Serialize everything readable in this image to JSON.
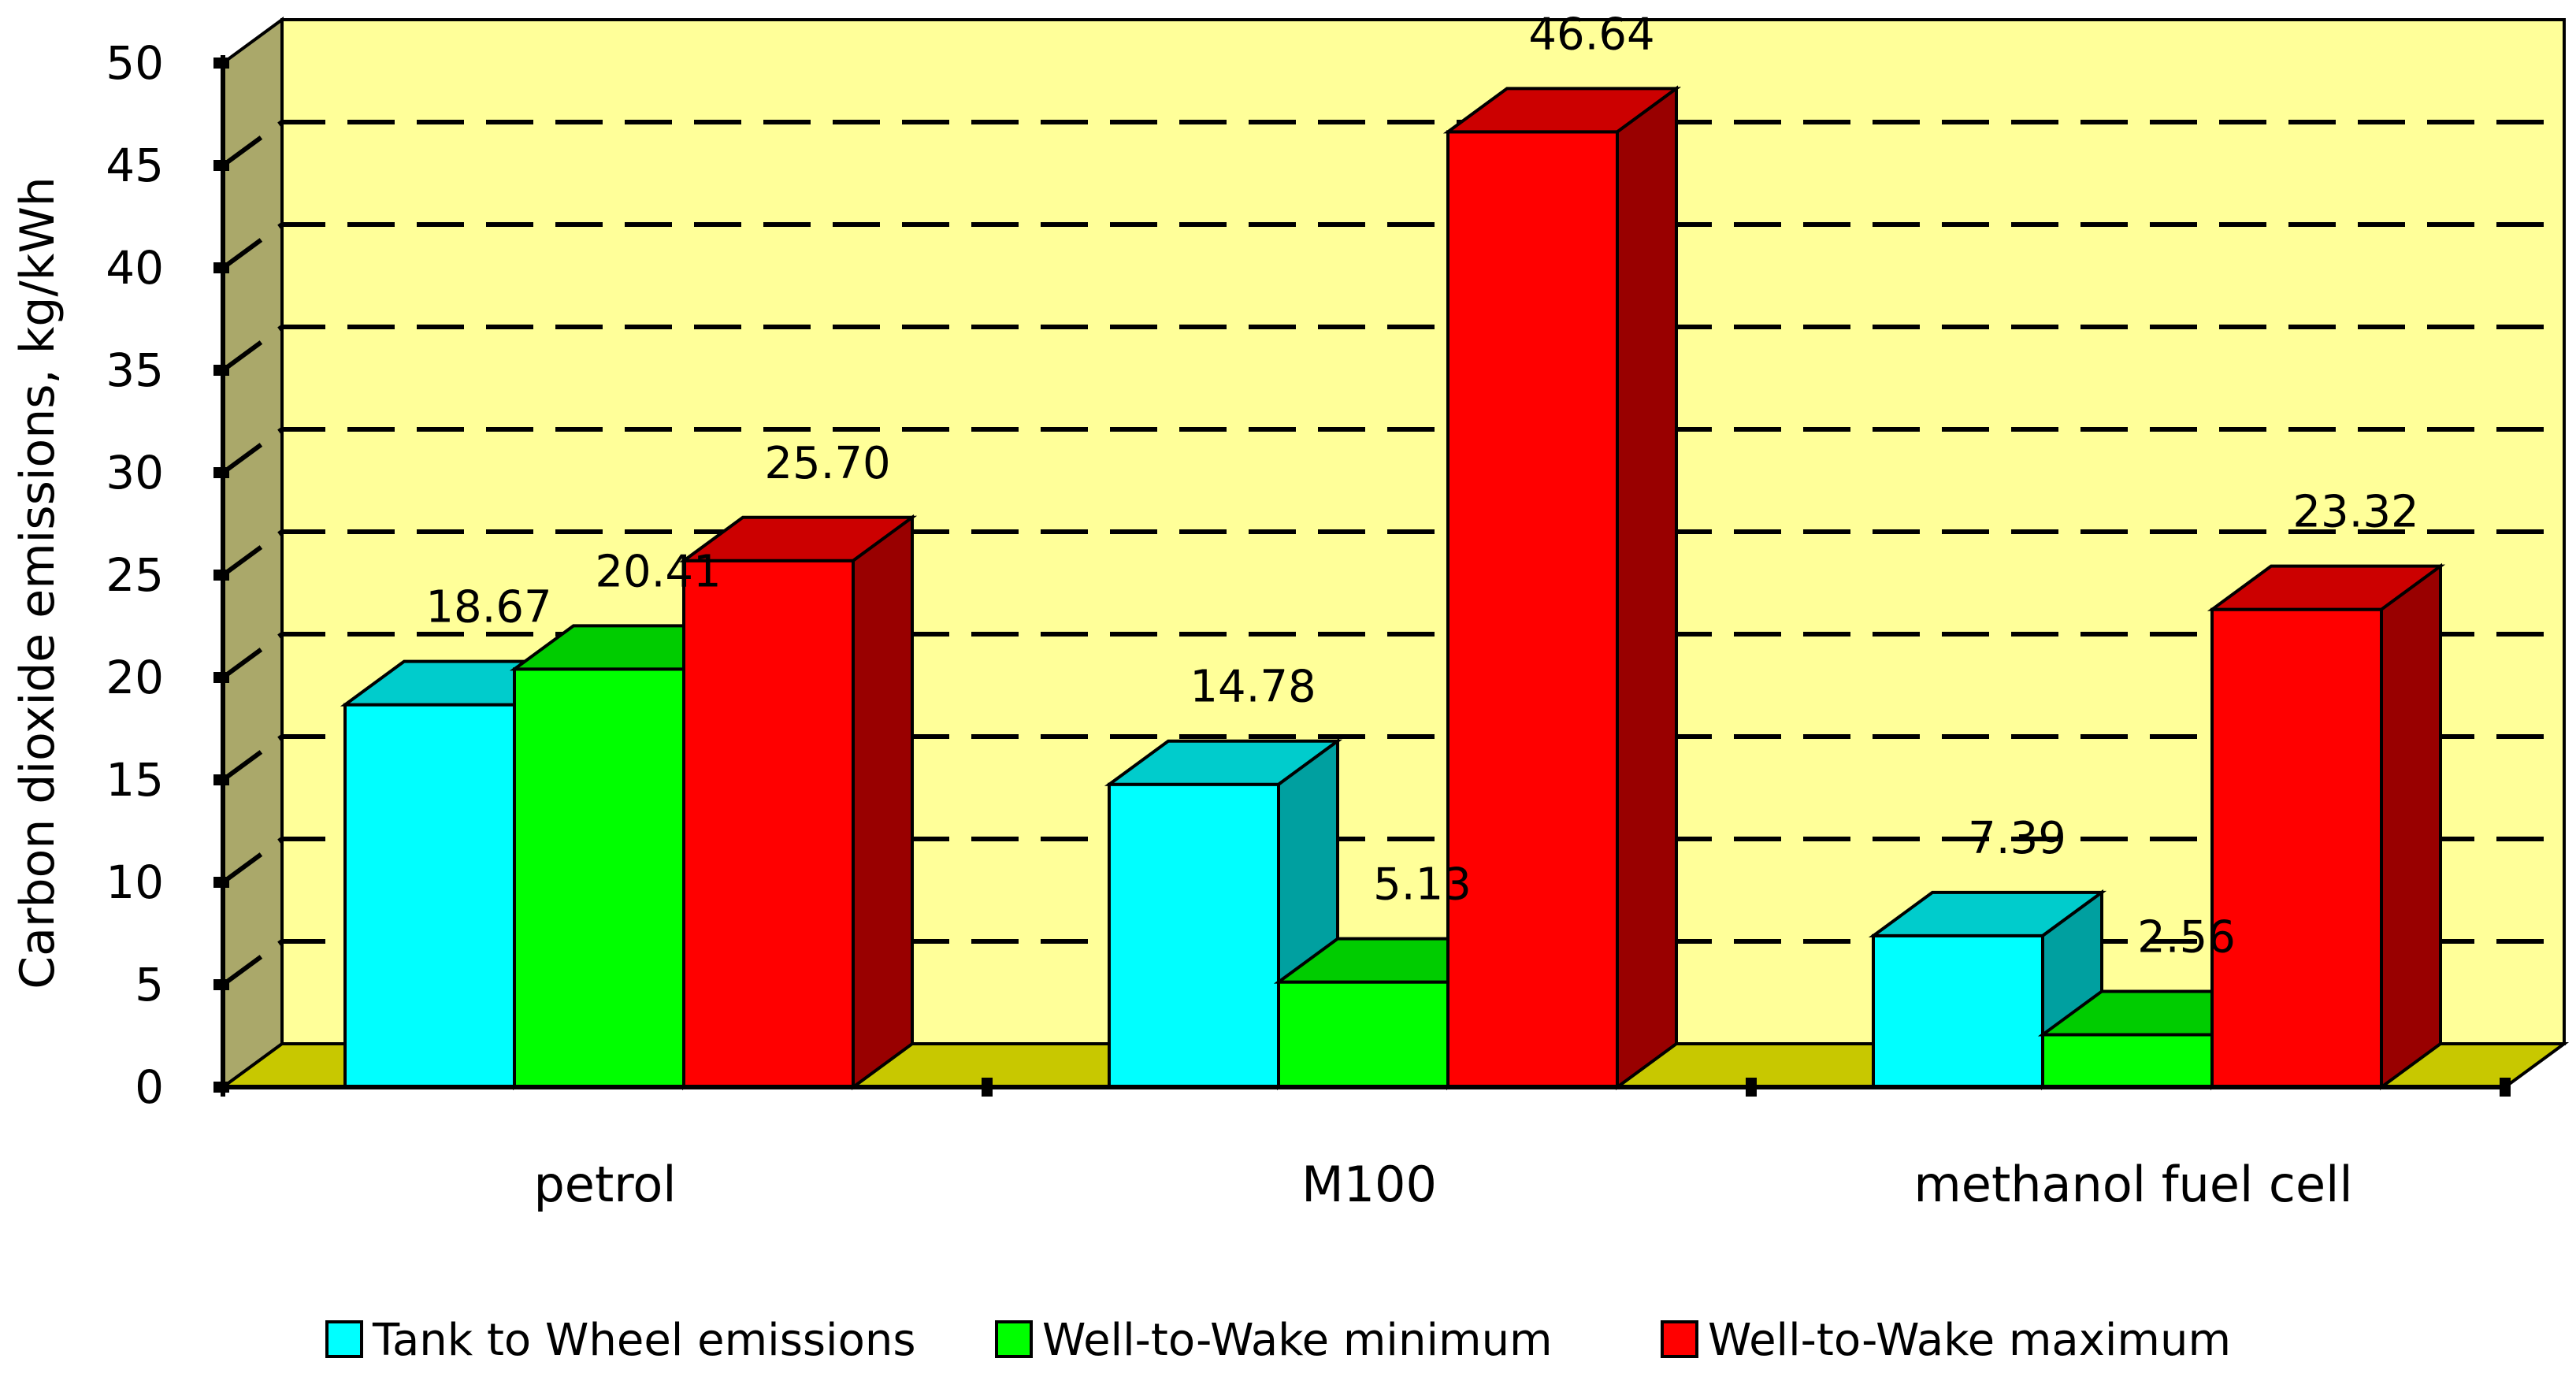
{
  "chart_data": {
    "type": "bar",
    "title": "",
    "xlabel": "",
    "ylabel": "Carbon dioxide emissions, kg/kWh",
    "ylim": [
      0,
      50
    ],
    "yticks": [
      "0",
      "5",
      "10",
      "15",
      "20",
      "25",
      "30",
      "35",
      "40",
      "45",
      "50"
    ],
    "grid": true,
    "categories": [
      "petrol",
      "M100",
      "methanol fuel cell"
    ],
    "series": [
      {
        "name": "Tank to Wheel emissions",
        "values": [
          18.67,
          14.78,
          7.39
        ],
        "labels": [
          "18.67",
          "14.78",
          "7.39"
        ],
        "color": "#00ffff",
        "top_color": "#00cccc",
        "side_color": "#00a0a0"
      },
      {
        "name": "Well-to-Wake minimum",
        "values": [
          20.41,
          5.13,
          2.56
        ],
        "labels": [
          "20.41",
          "5.13",
          "2.56"
        ],
        "color": "#00ff00",
        "top_color": "#00cc00",
        "side_color": "#009900"
      },
      {
        "name": "Well-to-Wake maximum",
        "values": [
          25.7,
          46.64,
          23.32
        ],
        "labels": [
          "25.70",
          "46.64",
          "23.32"
        ],
        "color": "#ff0000",
        "top_color": "#cc0000",
        "side_color": "#990000"
      }
    ],
    "legend_position": "bottom",
    "colors": {
      "back_wall": "#ffff99",
      "side_wall": "#aaa86a",
      "floor": "#c8c800"
    }
  }
}
